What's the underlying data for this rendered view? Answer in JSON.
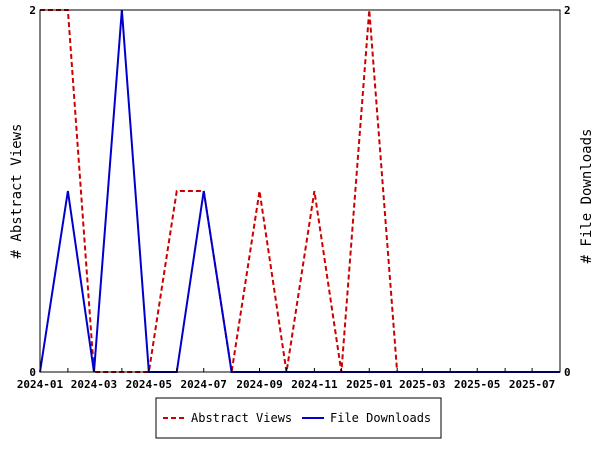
{
  "chart_data": {
    "type": "line",
    "title": "",
    "ylabel_left": "# Abstract Views",
    "ylabel_right": "# File Downloads",
    "x_tick_labels": [
      "2024-01",
      "2024-03",
      "2024-05",
      "2024-07",
      "2024-09",
      "2024-11",
      "2025-01",
      "2025-03",
      "2025-05",
      "2025-07"
    ],
    "x_dates": [
      "2024-01-01",
      "2024-02-01",
      "2024-03-01",
      "2024-04-01",
      "2024-05-01",
      "2024-06-01",
      "2024-07-01",
      "2024-08-01",
      "2024-09-01",
      "2024-10-01",
      "2024-11-01",
      "2024-12-01",
      "2025-01-01",
      "2025-02-01"
    ],
    "xlim": [
      "2024-01-01",
      "2025-08-01"
    ],
    "ylim_left": [
      0,
      2
    ],
    "ylim_right": [
      0,
      2
    ],
    "y_tick_labels_left": [
      "0",
      "2"
    ],
    "y_tick_labels_right": [
      "0",
      "2"
    ],
    "grid": false,
    "legend_position": "bottom-center",
    "series": [
      {
        "name": "Abstract Views",
        "axis": "left",
        "color": "#cc0000",
        "style": "dashed",
        "x": [
          "2024-01-01",
          "2024-02-01",
          "2024-03-01",
          "2024-04-01",
          "2024-05-01",
          "2024-06-01",
          "2024-07-01",
          "2024-08-01",
          "2024-09-01",
          "2024-10-01",
          "2024-11-01",
          "2024-12-01",
          "2025-01-01",
          "2025-02-01"
        ],
        "values": [
          2,
          2,
          0,
          0,
          0,
          1,
          1,
          0,
          1,
          0,
          1,
          0,
          2,
          0
        ]
      },
      {
        "name": "File Downloads",
        "axis": "right",
        "color": "#0000cc",
        "style": "solid",
        "x": [
          "2024-01-01",
          "2024-02-01",
          "2024-03-01",
          "2024-04-01",
          "2024-05-01",
          "2024-06-01",
          "2024-07-01",
          "2024-08-01",
          "2024-09-01",
          "2024-10-01",
          "2024-11-01",
          "2024-12-01",
          "2025-01-01",
          "2025-02-01",
          "2025-08-01"
        ],
        "values": [
          0,
          1,
          0,
          2,
          0,
          0,
          1,
          0,
          0,
          0,
          0,
          0,
          0,
          0,
          0
        ]
      }
    ]
  }
}
